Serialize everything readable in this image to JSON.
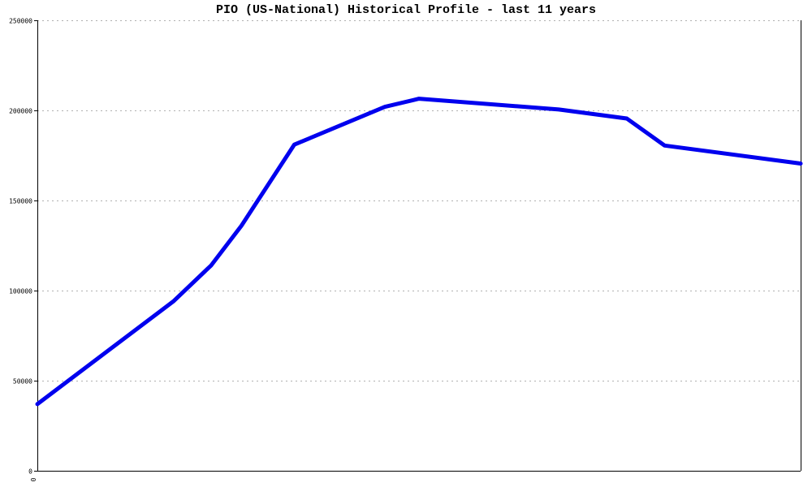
{
  "chart_data": {
    "type": "line",
    "title": "PIO (US-National) Historical Profile - last 11 years",
    "xlabel": "",
    "ylabel": "",
    "ylim": [
      0,
      250000
    ],
    "yticks": [
      0,
      50000,
      100000,
      150000,
      200000,
      250000
    ],
    "ytick_labels": [
      "0",
      "50000",
      "100000",
      "150000",
      "200000",
      "250000"
    ],
    "xtick_labels": [
      "0"
    ],
    "grid": true,
    "series": [
      {
        "color": "#0000ee",
        "x": [
          0,
          18,
          23,
          27,
          34,
          46,
          50.5,
          69,
          78,
          83,
          101
        ],
        "y": [
          37000,
          94000,
          114000,
          136000,
          181000,
          202000,
          206500,
          200500,
          195500,
          180500,
          170500
        ]
      }
    ]
  }
}
